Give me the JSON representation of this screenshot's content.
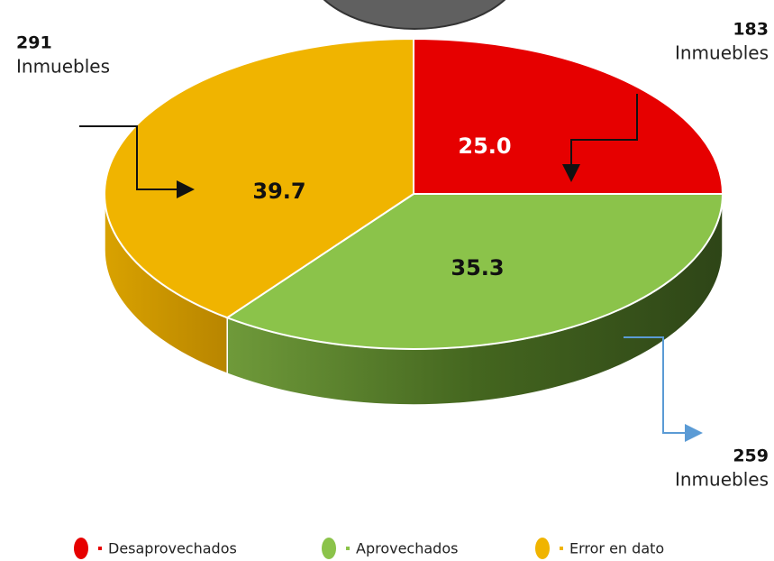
{
  "chart_data": {
    "type": "pie3d",
    "categories": [
      "Desaprovechados",
      "Aprovechados",
      "Error en dato"
    ],
    "values": [
      25.0,
      35.3,
      39.7
    ],
    "value_labels": [
      "25.0",
      "35.3",
      "39.7"
    ],
    "colors": [
      "#e60000",
      "#8bc34a",
      "#f0b400"
    ],
    "counts": [
      183,
      259,
      291
    ],
    "counts_unit": "Inmuebles",
    "legend": "bottom"
  }
}
